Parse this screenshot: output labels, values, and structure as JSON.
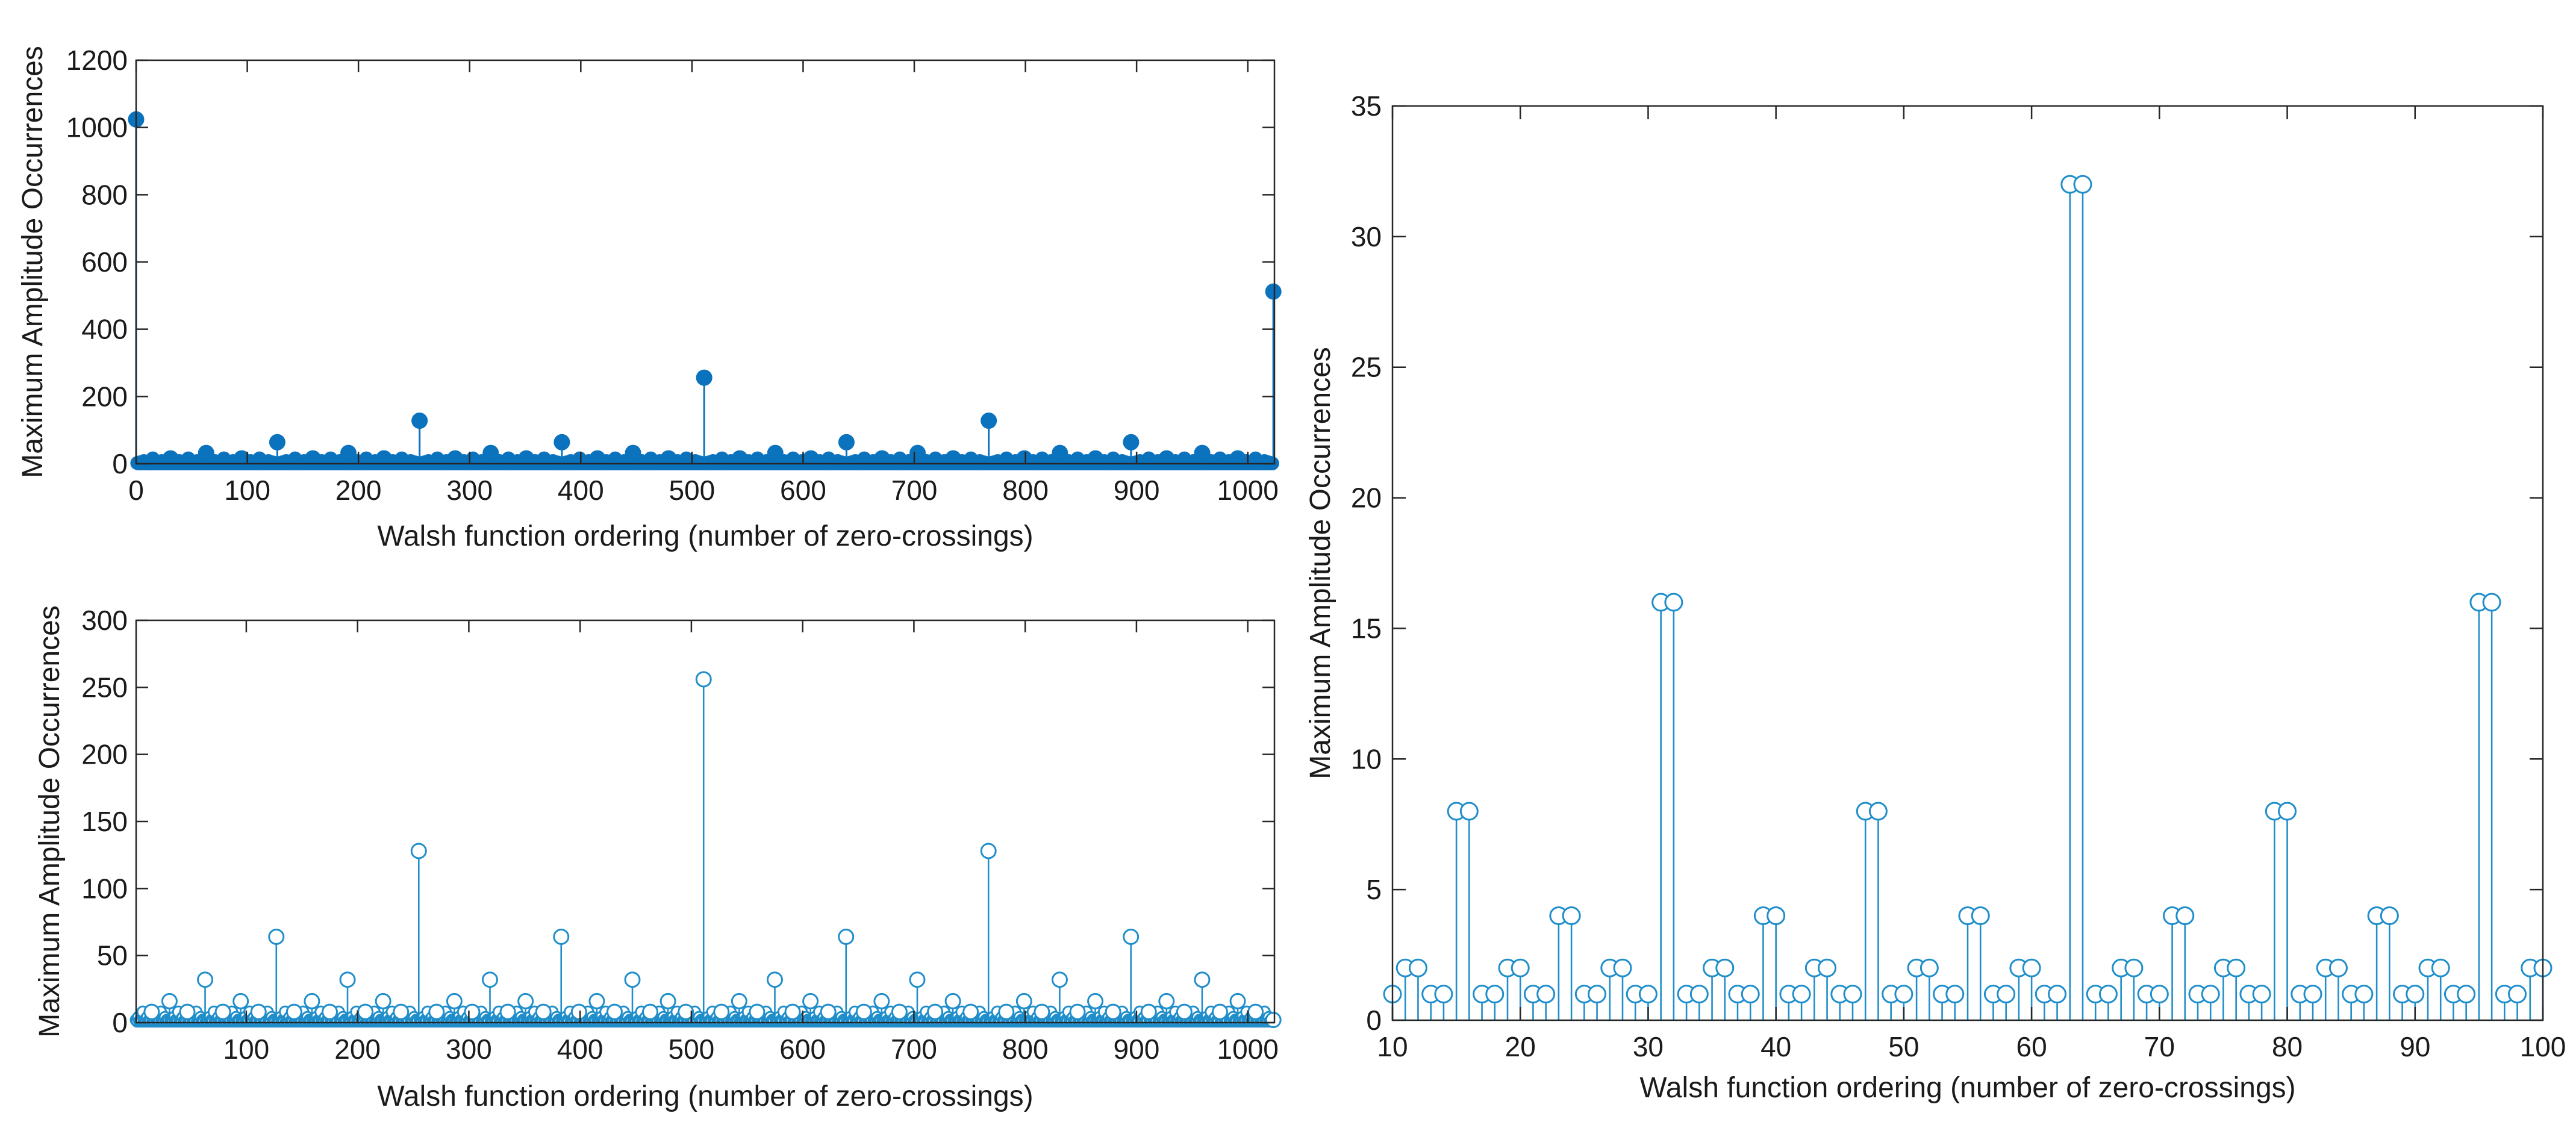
{
  "figure": {
    "background": "#ffffff",
    "axis_color": "#262626",
    "stem_color": "#1f8ecb",
    "filled_color": "#0b72bd"
  },
  "chart_data": [
    {
      "id": "top-left",
      "type": "stem",
      "marker": "filled-circle",
      "title": "",
      "xlabel": "Walsh function ordering (number of zero-crossings)",
      "ylabel": "Maximum Amplitude Occurrences",
      "xlim": [
        0,
        1024
      ],
      "ylim": [
        0,
        1200
      ],
      "xticks": [
        0,
        100,
        200,
        300,
        400,
        500,
        600,
        700,
        800,
        900,
        1000
      ],
      "yticks": [
        0,
        200,
        400,
        600,
        800,
        1000,
        1200
      ],
      "xtick_labels": [
        "0",
        "100",
        "200",
        "300",
        "400",
        "500",
        "600",
        "700",
        "800",
        "900",
        "1000"
      ],
      "ytick_labels": [
        "0",
        "200",
        "400",
        "600",
        "800",
        "1000",
        "1200"
      ],
      "x": [
        0,
        31,
        63,
        95,
        127,
        159,
        191,
        223,
        255,
        287,
        319,
        351,
        383,
        415,
        447,
        479,
        511,
        543,
        575,
        607,
        639,
        671,
        703,
        735,
        767,
        799,
        831,
        863,
        895,
        927,
        959,
        991,
        1023
      ],
      "values": [
        1024,
        16,
        32,
        16,
        64,
        16,
        32,
        16,
        128,
        16,
        32,
        16,
        64,
        16,
        32,
        16,
        256,
        16,
        32,
        16,
        64,
        16,
        32,
        16,
        128,
        16,
        32,
        16,
        64,
        16,
        32,
        16,
        512
      ],
      "baseline_note": "all remaining indices 0-1023 carry small values following 2^(trailing ones) pattern"
    },
    {
      "id": "bottom-left",
      "type": "stem",
      "marker": "open-circle",
      "title": "",
      "xlabel": "Walsh function ordering (number of zero-crossings)",
      "ylabel": "Maximum Amplitude Occurrences",
      "xlim": [
        1,
        1024
      ],
      "ylim": [
        0,
        300
      ],
      "xticks": [
        100,
        200,
        300,
        400,
        500,
        600,
        700,
        800,
        900,
        1000
      ],
      "yticks": [
        0,
        50,
        100,
        150,
        200,
        250,
        300
      ],
      "xtick_labels": [
        "100",
        "200",
        "300",
        "400",
        "500",
        "600",
        "700",
        "800",
        "900",
        "1000"
      ],
      "ytick_labels": [
        "0",
        "50",
        "100",
        "150",
        "200",
        "250",
        "300"
      ],
      "x": [
        15,
        31,
        47,
        63,
        79,
        95,
        111,
        127,
        143,
        159,
        175,
        191,
        207,
        223,
        239,
        255,
        271,
        287,
        303,
        319,
        335,
        351,
        367,
        383,
        399,
        415,
        431,
        447,
        463,
        479,
        495,
        511,
        527,
        543,
        559,
        575,
        591,
        607,
        623,
        639,
        655,
        671,
        687,
        703,
        719,
        735,
        751,
        767,
        783,
        799,
        815,
        831,
        847,
        863,
        879,
        895,
        911,
        927,
        943,
        959,
        975,
        991,
        1007,
        1023
      ],
      "values": [
        8,
        16,
        8,
        32,
        8,
        16,
        8,
        64,
        8,
        16,
        8,
        32,
        8,
        16,
        8,
        128,
        8,
        16,
        8,
        32,
        8,
        16,
        8,
        64,
        8,
        16,
        8,
        32,
        8,
        16,
        8,
        256,
        8,
        16,
        8,
        32,
        8,
        16,
        8,
        64,
        8,
        16,
        8,
        32,
        8,
        16,
        8,
        128,
        8,
        16,
        8,
        32,
        8,
        16,
        8,
        64,
        8,
        16,
        8,
        32,
        8,
        16,
        8,
        2
      ],
      "baseline_note": "all remaining indices carry values 1-4 following 2^(trailing ones) pattern"
    },
    {
      "id": "right",
      "type": "stem",
      "marker": "open-circle",
      "title": "",
      "xlabel": "Walsh function ordering (number of zero-crossings)",
      "ylabel": "Maximum Amplitude Occurrences",
      "xlim": [
        10,
        100
      ],
      "ylim": [
        0,
        35
      ],
      "xticks": [
        10,
        20,
        30,
        40,
        50,
        60,
        70,
        80,
        90,
        100
      ],
      "yticks": [
        0,
        5,
        10,
        15,
        20,
        25,
        30,
        35
      ],
      "xtick_labels": [
        "10",
        "20",
        "30",
        "40",
        "50",
        "60",
        "70",
        "80",
        "90",
        "100"
      ],
      "ytick_labels": [
        "0",
        "5",
        "10",
        "15",
        "20",
        "25",
        "30",
        "35"
      ],
      "x": [
        10,
        11,
        12,
        13,
        14,
        15,
        16,
        17,
        18,
        19,
        20,
        21,
        22,
        23,
        24,
        25,
        26,
        27,
        28,
        29,
        30,
        31,
        32,
        33,
        34,
        35,
        36,
        37,
        38,
        39,
        40,
        41,
        42,
        43,
        44,
        45,
        46,
        47,
        48,
        49,
        50,
        51,
        52,
        53,
        54,
        55,
        56,
        57,
        58,
        59,
        60,
        61,
        62,
        63,
        64,
        65,
        66,
        67,
        68,
        69,
        70,
        71,
        72,
        73,
        74,
        75,
        76,
        77,
        78,
        79,
        80,
        81,
        82,
        83,
        84,
        85,
        86,
        87,
        88,
        89,
        90,
        91,
        92,
        93,
        94,
        95,
        96,
        97,
        98,
        99,
        100
      ],
      "values": [
        1,
        2,
        2,
        1,
        1,
        8,
        8,
        1,
        1,
        2,
        2,
        1,
        1,
        4,
        4,
        1,
        1,
        2,
        2,
        1,
        1,
        16,
        16,
        1,
        1,
        2,
        2,
        1,
        1,
        4,
        4,
        1,
        1,
        2,
        2,
        1,
        1,
        8,
        8,
        1,
        1,
        2,
        2,
        1,
        1,
        4,
        4,
        1,
        1,
        2,
        2,
        1,
        1,
        32,
        32,
        1,
        1,
        2,
        2,
        1,
        1,
        4,
        4,
        1,
        1,
        2,
        2,
        1,
        1,
        8,
        8,
        1,
        1,
        2,
        2,
        1,
        1,
        4,
        4,
        1,
        1,
        2,
        2,
        1,
        1,
        16,
        16,
        1,
        1,
        2,
        2
      ]
    }
  ]
}
